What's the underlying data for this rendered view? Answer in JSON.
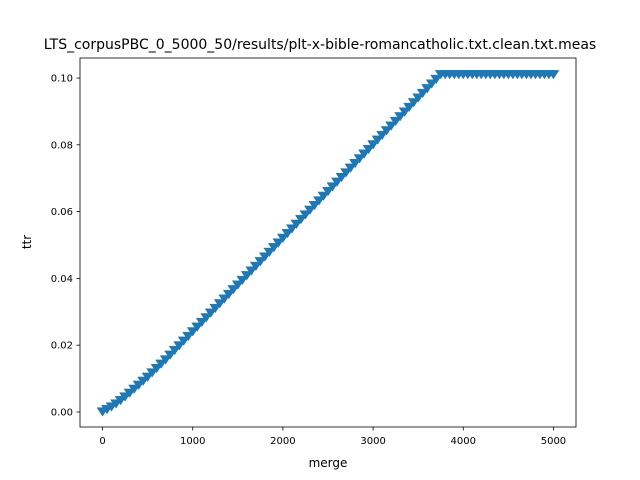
{
  "chart_data": {
    "type": "scatter",
    "title": "LTS_corpusPBC_0_5000_50/results/plt-x-bible-romancatholic.txt.clean.txt.meas",
    "xlabel": "merge",
    "ylabel": "ttr",
    "xlim": [
      -250,
      5250
    ],
    "ylim": [
      -0.0045,
      0.106
    ],
    "xticks": [
      0,
      1000,
      2000,
      3000,
      4000,
      5000
    ],
    "xtick_labels": [
      "0",
      "1000",
      "2000",
      "3000",
      "4000",
      "5000"
    ],
    "yticks": [
      0.0,
      0.02,
      0.04,
      0.06,
      0.08,
      0.1
    ],
    "ytick_labels": [
      "0.00",
      "0.02",
      "0.04",
      "0.06",
      "0.08",
      "0.10"
    ],
    "grid": false,
    "legend": "none",
    "marker": "triangle-down",
    "series_color": "#1f77b4",
    "x": [
      0,
      50,
      100,
      150,
      200,
      250,
      300,
      350,
      400,
      450,
      500,
      550,
      600,
      650,
      700,
      750,
      800,
      850,
      900,
      950,
      1000,
      1050,
      1100,
      1150,
      1200,
      1250,
      1300,
      1350,
      1400,
      1450,
      1500,
      1550,
      1600,
      1650,
      1700,
      1750,
      1800,
      1850,
      1900,
      1950,
      2000,
      2050,
      2100,
      2150,
      2200,
      2250,
      2300,
      2350,
      2400,
      2450,
      2500,
      2550,
      2600,
      2650,
      2700,
      2750,
      2800,
      2850,
      2900,
      2950,
      3000,
      3050,
      3100,
      3150,
      3200,
      3250,
      3300,
      3350,
      3400,
      3450,
      3500,
      3550,
      3600,
      3650,
      3700,
      3750,
      3800,
      3850,
      3900,
      3950,
      4000,
      4050,
      4100,
      4150,
      4200,
      4250,
      4300,
      4350,
      4400,
      4450,
      4500,
      4550,
      4600,
      4650,
      4700,
      4750,
      4800,
      4850,
      4900,
      4950,
      5000
    ],
    "y": [
      0.0003,
      0.001,
      0.0018,
      0.0027,
      0.0037,
      0.0048,
      0.0059,
      0.0071,
      0.0083,
      0.0095,
      0.0107,
      0.012,
      0.0133,
      0.0146,
      0.0159,
      0.0173,
      0.0187,
      0.0201,
      0.0215,
      0.0229,
      0.0243,
      0.0257,
      0.0271,
      0.0285,
      0.0299,
      0.0313,
      0.0327,
      0.0341,
      0.0355,
      0.0369,
      0.0383,
      0.0397,
      0.0411,
      0.0425,
      0.0439,
      0.0453,
      0.0467,
      0.0481,
      0.0495,
      0.0509,
      0.0523,
      0.0537,
      0.0551,
      0.0565,
      0.0579,
      0.0593,
      0.0607,
      0.0621,
      0.0635,
      0.0649,
      0.0663,
      0.0677,
      0.0691,
      0.0705,
      0.0719,
      0.0733,
      0.0747,
      0.0761,
      0.0775,
      0.0789,
      0.0803,
      0.0817,
      0.0831,
      0.0845,
      0.0859,
      0.0873,
      0.0887,
      0.0901,
      0.0915,
      0.0929,
      0.0943,
      0.0957,
      0.0971,
      0.0985,
      0.0999,
      0.1013,
      0.1013,
      0.1013,
      0.1013,
      0.1013,
      0.1013,
      0.1013,
      0.1013,
      0.1013,
      0.1013,
      0.1013,
      0.1013,
      0.1013,
      0.1013,
      0.1013,
      0.1013,
      0.1013,
      0.1013,
      0.1013,
      0.1013,
      0.1013,
      0.1013,
      0.1013,
      0.1013,
      0.1013,
      0.1013
    ]
  }
}
